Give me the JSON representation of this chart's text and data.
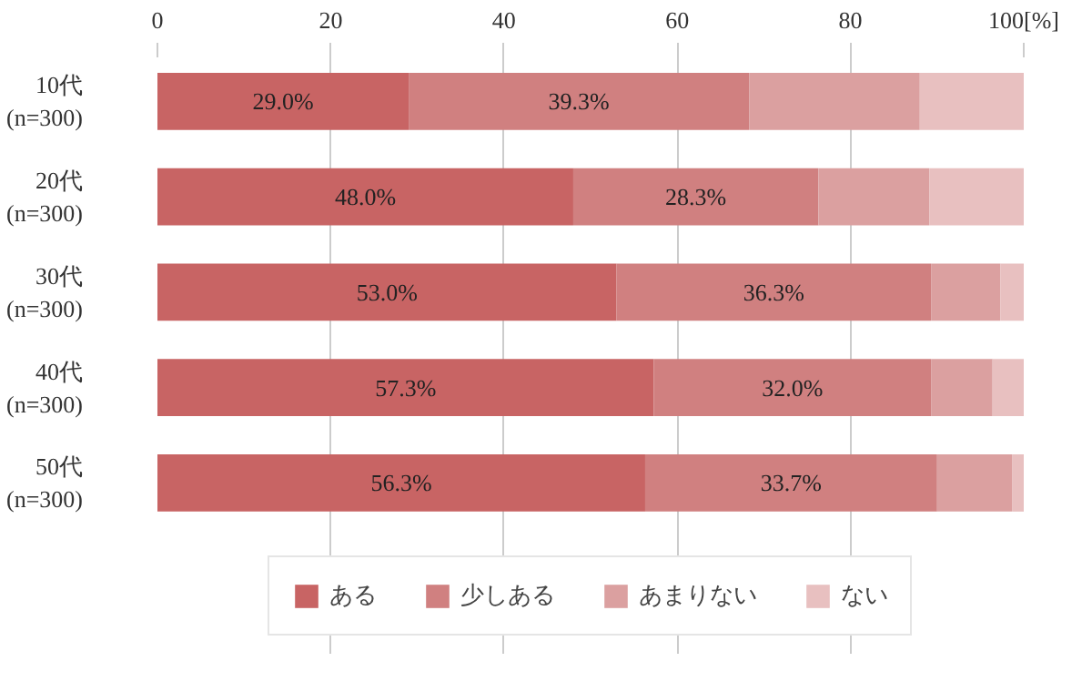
{
  "chart_data": {
    "type": "bar",
    "orientation": "horizontal",
    "stacked": true,
    "categories": [
      "10代\n(n=300)",
      "20代\n(n=300)",
      "30代\n(n=300)",
      "40代\n(n=300)",
      "50代\n(n=300)"
    ],
    "series": [
      {
        "name": "ある",
        "color": "#c86464",
        "values": [
          29.0,
          48.0,
          53.0,
          57.3,
          56.3
        ],
        "value_labels": [
          "29.0%",
          "48.0%",
          "53.0%",
          "57.3%",
          "56.3%"
        ]
      },
      {
        "name": "少しある",
        "color": "#d08080",
        "values": [
          39.3,
          28.3,
          36.3,
          32.0,
          33.7
        ],
        "value_labels": [
          "39.3%",
          "28.3%",
          "36.3%",
          "32.0%",
          "33.7%"
        ]
      },
      {
        "name": "あまりない",
        "color": "#dba0a0",
        "values": [
          19.7,
          12.8,
          8.0,
          7.1,
          8.7
        ]
      },
      {
        "name": "ない",
        "color": "#e8c0c0",
        "values": [
          12.0,
          10.9,
          2.7,
          3.6,
          1.3
        ]
      }
    ],
    "xlim": [
      0,
      100
    ],
    "xticks": [
      0,
      20,
      40,
      60,
      80,
      {
        "value": 100,
        "label": "100[%]"
      }
    ],
    "grid": "x",
    "legend": "bottom"
  }
}
